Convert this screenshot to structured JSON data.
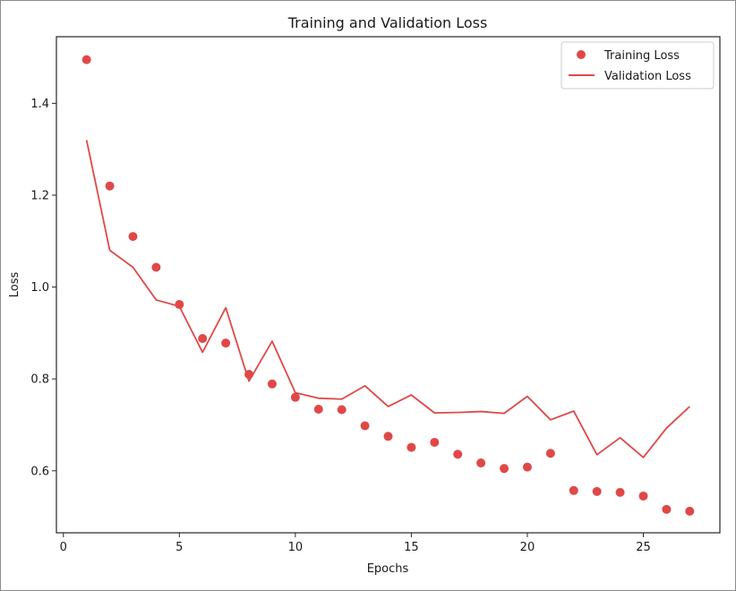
{
  "chart_data": {
    "type": "scatter+line",
    "title": "Training and Validation Loss",
    "xlabel": "Epochs",
    "ylabel": "Loss",
    "xlim": [
      -0.3,
      28.3
    ],
    "ylim": [
      0.465,
      1.545
    ],
    "xticks": [
      0,
      5,
      10,
      15,
      20,
      25
    ],
    "yticks": [
      0.6,
      0.8,
      1.0,
      1.2,
      1.4
    ],
    "ytick_labels": [
      "0.6",
      "0.8",
      "1.0",
      "1.2",
      "1.4"
    ],
    "grid": false,
    "legend": {
      "location": "upper right",
      "entries": [
        "Training Loss",
        "Validation Loss"
      ]
    },
    "series": [
      {
        "name": "Training Loss",
        "style": "markers",
        "color": "#e04848",
        "x": [
          1,
          2,
          3,
          4,
          5,
          6,
          7,
          8,
          9,
          10,
          11,
          12,
          13,
          14,
          15,
          16,
          17,
          18,
          19,
          20,
          21,
          22,
          23,
          24,
          25,
          26,
          27
        ],
        "y": [
          1.495,
          1.22,
          1.11,
          1.043,
          0.962,
          0.888,
          0.878,
          0.81,
          0.789,
          0.76,
          0.734,
          0.733,
          0.698,
          0.675,
          0.651,
          0.662,
          0.636,
          0.617,
          0.605,
          0.608,
          0.638,
          0.557,
          0.555,
          0.553,
          0.545,
          0.516,
          0.512
        ]
      },
      {
        "name": "Validation Loss",
        "style": "line",
        "color": "#e04848",
        "x": [
          1,
          2,
          3,
          4,
          5,
          6,
          7,
          8,
          9,
          10,
          11,
          12,
          13,
          14,
          15,
          16,
          17,
          18,
          19,
          20,
          21,
          22,
          23,
          24,
          25,
          26,
          27
        ],
        "y": [
          1.32,
          1.08,
          1.043,
          0.972,
          0.958,
          0.858,
          0.955,
          0.795,
          0.882,
          0.77,
          0.758,
          0.756,
          0.785,
          0.74,
          0.765,
          0.726,
          0.727,
          0.729,
          0.725,
          0.762,
          0.711,
          0.73,
          0.635,
          0.672,
          0.629,
          0.693,
          0.74
        ]
      }
    ]
  }
}
